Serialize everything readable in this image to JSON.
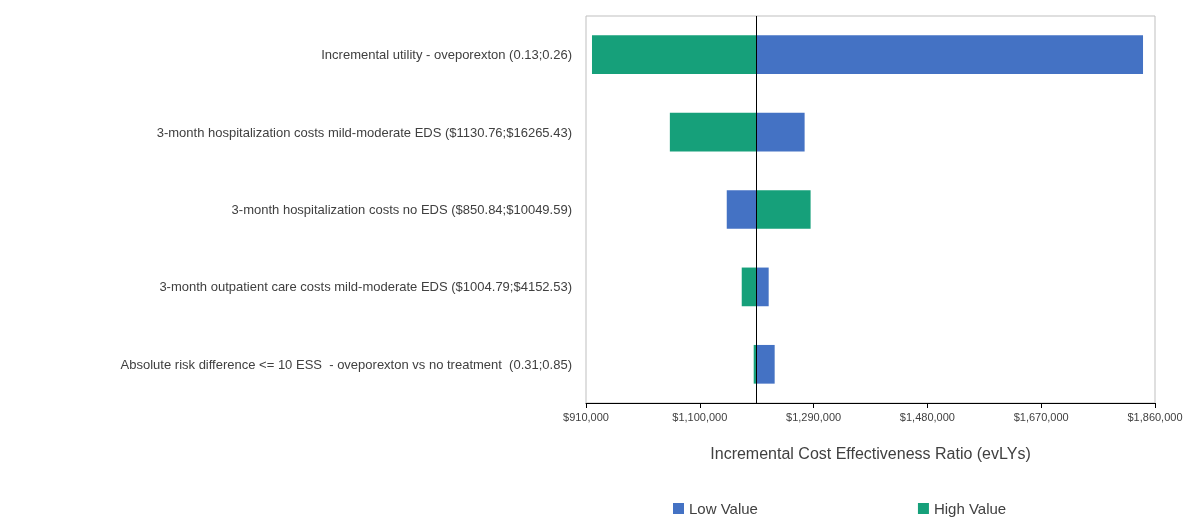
{
  "chart_data": {
    "type": "bar",
    "orientation": "horizontal",
    "categories": [
      "Incremental utility - oveporexton (0.13;0.26)",
      "3-month hospitalization costs mild-moderate EDS ($1130.76;$16265.43)",
      "3-month hospitalization costs no EDS ($850.84;$10049.59)",
      "3-month outpatient care costs mild-moderate EDS ($1004.79;$4152.53)",
      "Absolute risk difference <= 10 ESS  - oveporexton vs no treatment  (0.31;0.85)"
    ],
    "series": [
      {
        "name": "Low Value",
        "color": "#4472c4",
        "base": [
          1195000,
          1195000,
          1195000,
          1195000,
          1195000
        ],
        "values": [
          645000,
          80000,
          -50000,
          20000,
          30000
        ]
      },
      {
        "name": "High Value",
        "color": "#16a07a",
        "base": [
          1195000,
          1195000,
          1195000,
          1195000,
          1195000
        ],
        "values": [
          -275000,
          -145000,
          90000,
          -25000,
          -5000
        ]
      }
    ],
    "xlim": [
      910000,
      1860000
    ],
    "xticks": [
      {
        "value": 910000,
        "label": "$910,000"
      },
      {
        "value": 1100000,
        "label": "$1,100,000"
      },
      {
        "value": 1290000,
        "label": "$1,290,000"
      },
      {
        "value": 1480000,
        "label": "$1,480,000"
      },
      {
        "value": 1670000,
        "label": "$1,670,000"
      },
      {
        "value": 1860000,
        "label": "$1,860,000"
      }
    ],
    "xlabel": "Incremental Cost Effectiveness Ratio (evLYs)",
    "ref_lines": [
      {
        "axis": "x",
        "value": 1195000,
        "color": "#000000"
      }
    ],
    "grid": false,
    "legend": "bottom"
  }
}
